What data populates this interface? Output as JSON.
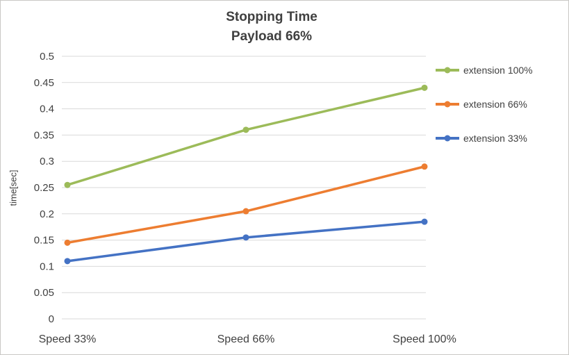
{
  "title": {
    "line1": "Stopping Time",
    "line2": "Payload 66%"
  },
  "chart_data": {
    "type": "line",
    "title": "Stopping Time Payload 66%",
    "categories": [
      "Speed 33%",
      "Speed 66%",
      "Speed 100%"
    ],
    "series": [
      {
        "name": "extension 100%",
        "color": "#9CBB59",
        "values": [
          0.255,
          0.36,
          0.44
        ]
      },
      {
        "name": "extension 66%",
        "color": "#ED7D31",
        "values": [
          0.145,
          0.205,
          0.29
        ]
      },
      {
        "name": "extension 33%",
        "color": "#4472C4",
        "values": [
          0.11,
          0.155,
          0.185
        ]
      }
    ],
    "xlabel": "",
    "ylabel": "time[sec]",
    "ylim": [
      0,
      0.5
    ],
    "ytick_step": 0.05,
    "grid": true,
    "legend_position": "right",
    "gridline_color": "#D9D9D9",
    "axis_text_color": "#404040"
  }
}
